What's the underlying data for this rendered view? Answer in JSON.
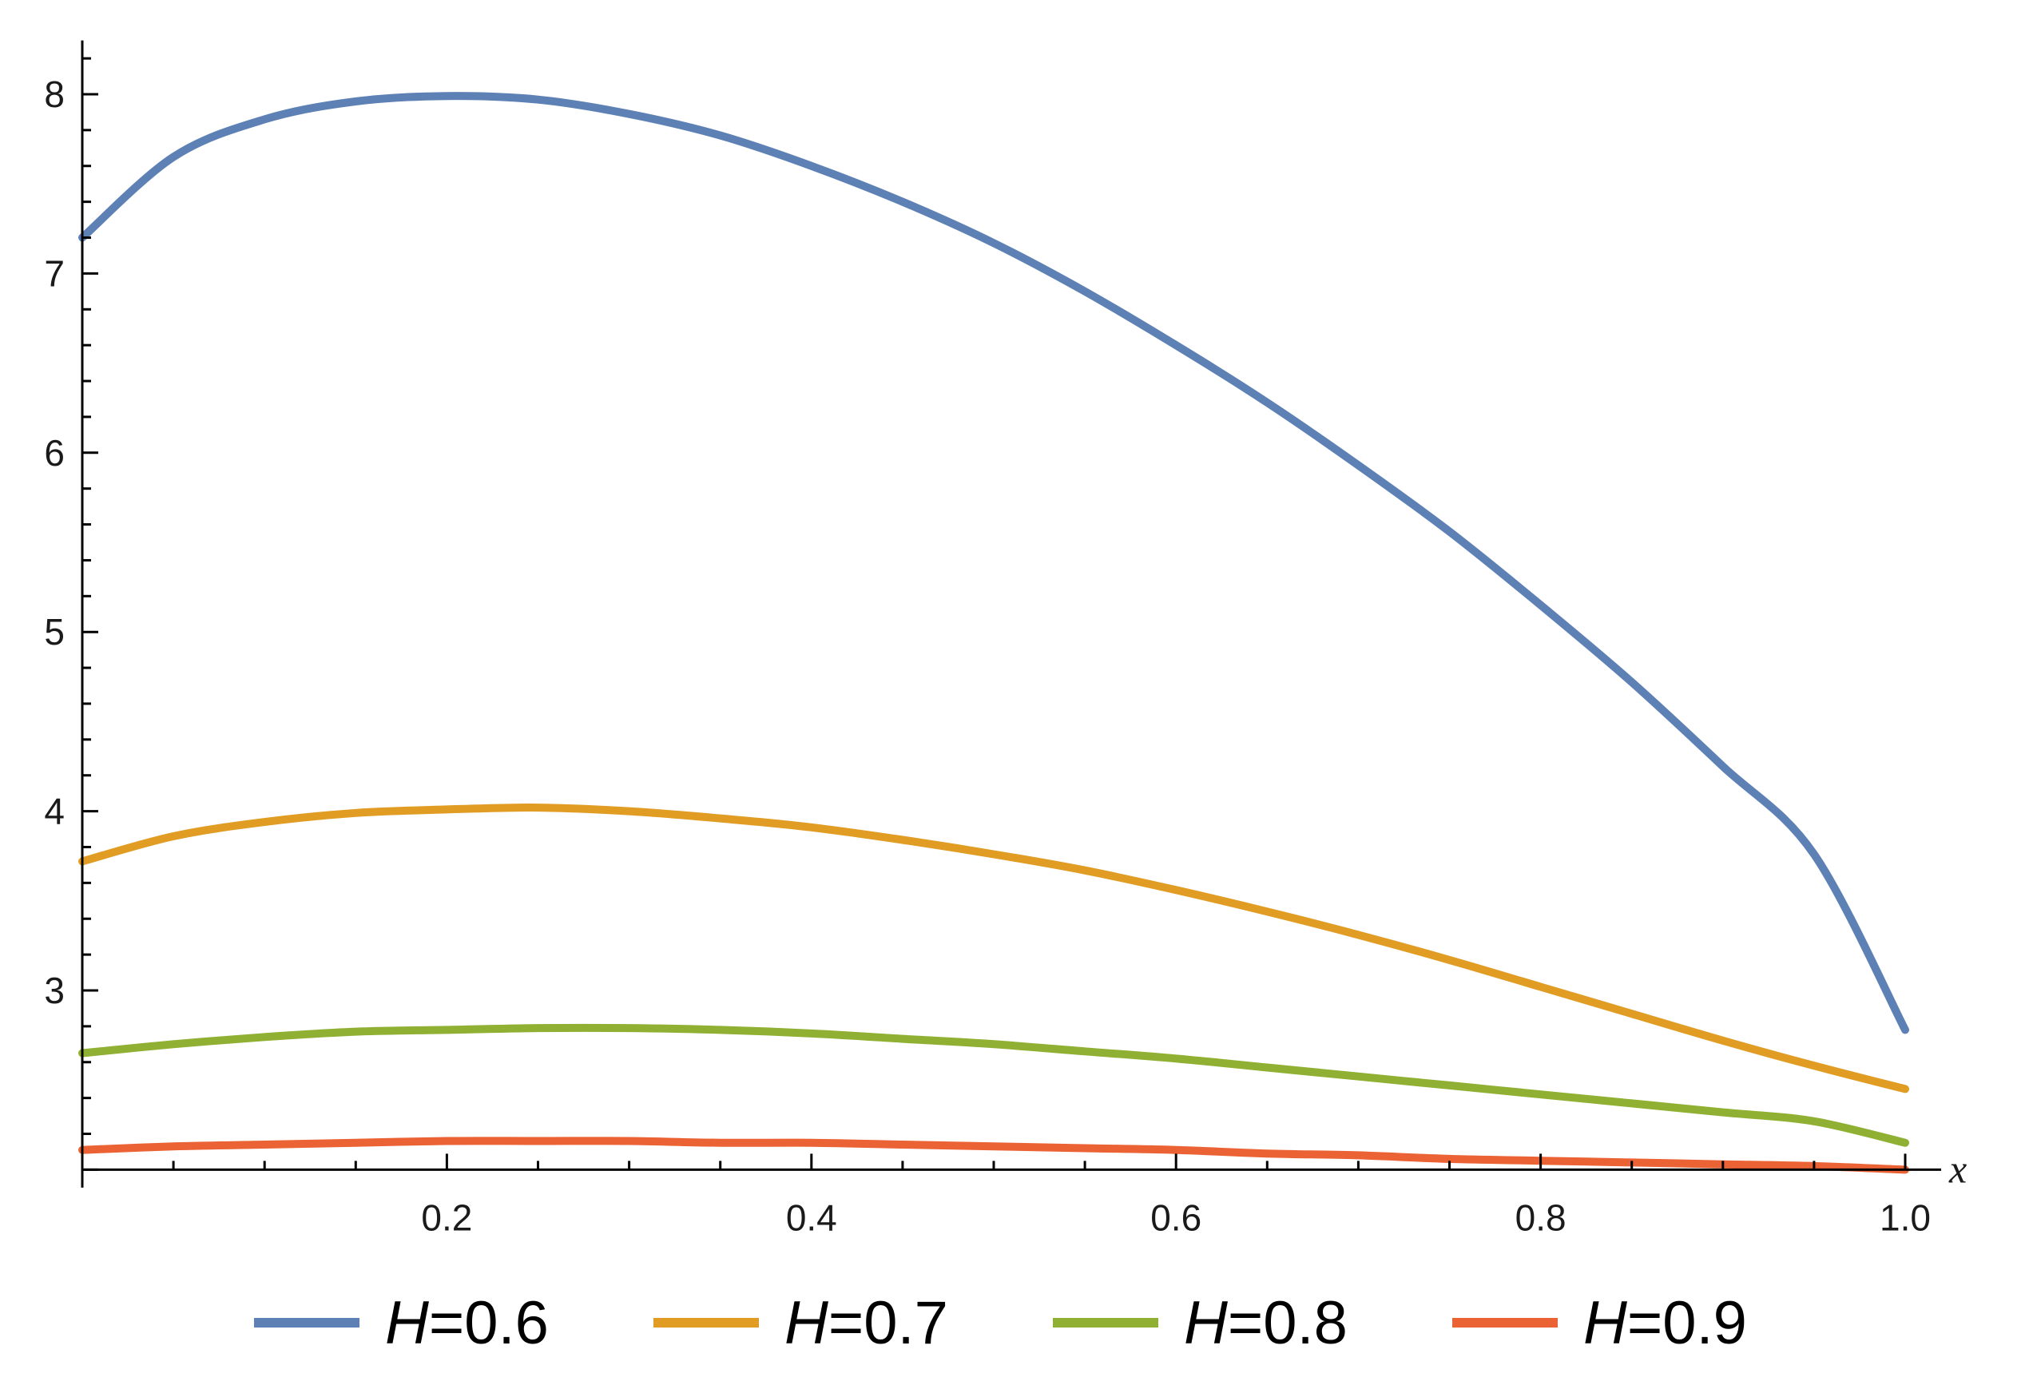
{
  "chart_data": {
    "type": "line",
    "title": "",
    "xlabel": "x",
    "ylabel": "",
    "xlim": [
      0,
      1.0
    ],
    "ylim": [
      1.9,
      8.3
    ],
    "x_axis_crosses_y_at": 2.0,
    "x_ticks": [
      0.2,
      0.4,
      0.6,
      0.8,
      1.0
    ],
    "x_tick_labels": [
      "0.2",
      "0.4",
      "0.6",
      "0.8",
      "1.0"
    ],
    "y_ticks": [
      3,
      4,
      5,
      6,
      7,
      8
    ],
    "y_tick_labels": [
      "3",
      "4",
      "5",
      "6",
      "7",
      "8"
    ],
    "grid": false,
    "legend_position": "bottom",
    "x": [
      0.0,
      0.05,
      0.1,
      0.15,
      0.2,
      0.25,
      0.3,
      0.35,
      0.4,
      0.45,
      0.5,
      0.55,
      0.6,
      0.65,
      0.7,
      0.75,
      0.8,
      0.85,
      0.9,
      0.95,
      1.0
    ],
    "series": [
      {
        "name": "H=0.6",
        "name_parts": [
          "H",
          "=0.6"
        ],
        "color": "#5E81B5",
        "values": [
          7.2,
          7.65,
          7.86,
          7.96,
          7.99,
          7.97,
          7.89,
          7.77,
          7.6,
          7.4,
          7.17,
          6.9,
          6.6,
          6.28,
          5.93,
          5.56,
          5.15,
          4.72,
          4.25,
          3.76,
          2.78
        ]
      },
      {
        "name": "H=0.7",
        "name_parts": [
          "H",
          "=0.7"
        ],
        "color": "#E19C24",
        "values": [
          3.72,
          3.86,
          3.94,
          3.99,
          4.01,
          4.02,
          4.0,
          3.96,
          3.91,
          3.84,
          3.76,
          3.67,
          3.56,
          3.44,
          3.31,
          3.17,
          3.02,
          2.87,
          2.72,
          2.58,
          2.45
        ]
      },
      {
        "name": "H=0.8",
        "name_parts": [
          "H",
          "=0.8"
        ],
        "color": "#8FB032",
        "values": [
          2.65,
          2.7,
          2.74,
          2.77,
          2.78,
          2.79,
          2.79,
          2.78,
          2.76,
          2.73,
          2.7,
          2.66,
          2.62,
          2.57,
          2.52,
          2.47,
          2.42,
          2.37,
          2.32,
          2.27,
          2.15
        ]
      },
      {
        "name": "H=0.9",
        "name_parts": [
          "H",
          "=0.9"
        ],
        "color": "#EB6235",
        "values": [
          2.11,
          2.13,
          2.14,
          2.15,
          2.16,
          2.16,
          2.16,
          2.15,
          2.15,
          2.14,
          2.13,
          2.12,
          2.11,
          2.09,
          2.08,
          2.06,
          2.05,
          2.04,
          2.03,
          2.02,
          2.0
        ]
      }
    ]
  }
}
